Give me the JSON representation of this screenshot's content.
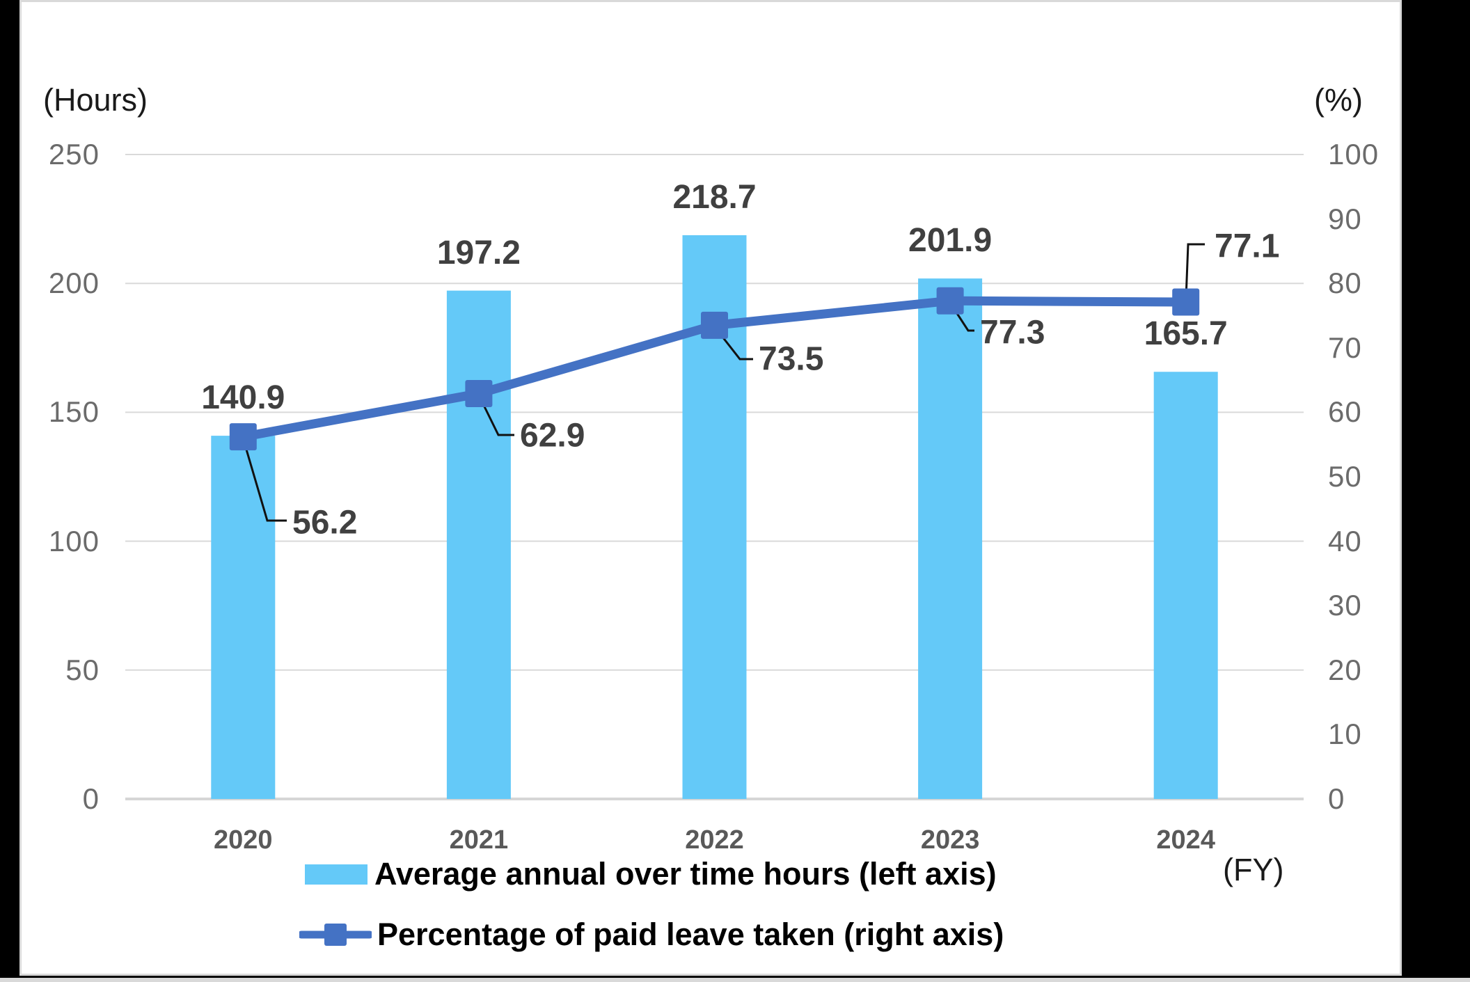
{
  "chart_data": {
    "type": "combo",
    "categories": [
      "2020",
      "2021",
      "2022",
      "2023",
      "2024"
    ],
    "series": [
      {
        "name": "Average annual over time hours (left axis)",
        "type": "bar",
        "axis": "left",
        "values": [
          140.9,
          197.2,
          218.7,
          201.9,
          165.7
        ]
      },
      {
        "name": "Percentage of paid leave taken (right axis)",
        "type": "line",
        "axis": "right",
        "values": [
          56.2,
          62.9,
          73.5,
          77.3,
          77.1
        ]
      }
    ],
    "left_axis": {
      "title": "(Hours)",
      "min": 0,
      "max": 250,
      "ticks": [
        250,
        200,
        150,
        100,
        50,
        0
      ]
    },
    "right_axis": {
      "title": "(%)",
      "min": 0,
      "max": 100,
      "ticks": [
        100,
        90,
        80,
        70,
        60,
        50,
        40,
        30,
        20,
        10,
        0
      ]
    },
    "x_axis": {
      "title": "(FY)"
    },
    "grid": "horizontal at left-axis ticks",
    "legend_position": "bottom"
  },
  "colors": {
    "bar": "#64C9F8",
    "line": "#4472C4",
    "grid": "#d9d9d9",
    "axis_line": "#d6d6d6",
    "tick_label": "#6b6b6b",
    "data_label": "#404040",
    "year_label": "#595959",
    "leader": "#111111",
    "legend_text": "#000000",
    "slide_bg": "#ffffff",
    "frame": "#000000"
  }
}
